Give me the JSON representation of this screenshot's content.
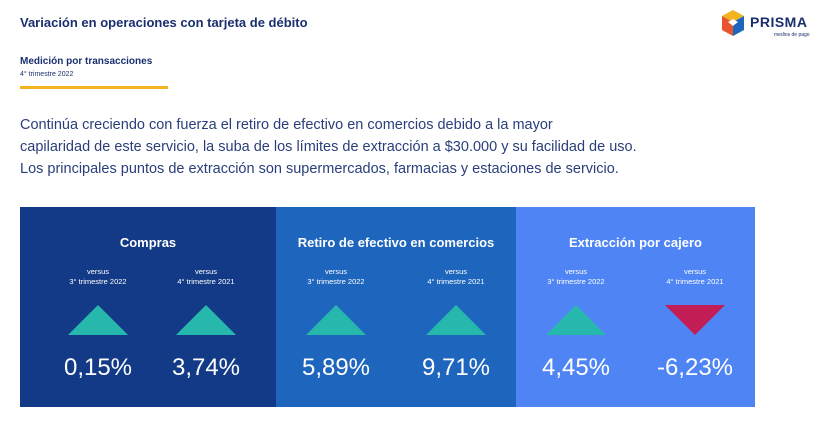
{
  "header": {
    "title": "Variación en operaciones con tarjeta de débito",
    "logo_name": "PRISMA",
    "logo_tagline": "medios de pago"
  },
  "subheader": {
    "heading": "Medición por transacciones",
    "caption": "4° trimestre 2022"
  },
  "paragraph": {
    "lines": [
      "Continúa creciendo con fuerza el retiro de efectivo en comercios debido a la mayor",
      "capilaridad de este servicio, la suba de los límites de extracción a $30.000 y su facilidad de uso.",
      "Los principales puntos de extracción son supermercados, farmacias y estaciones de servicio."
    ]
  },
  "colors": {
    "panel_compras": "#133a86",
    "panel_retiro": "#1d65bd",
    "panel_cajero": "#4e84f3",
    "up_arrow": "#27b8ad",
    "down_arrow": "#c21d54",
    "accent_line": "#f2b41f"
  },
  "panels": [
    {
      "title": "Compras",
      "metrics": [
        {
          "versus": "versus",
          "period": "3° trimestre 2022",
          "direction": "up",
          "value": "0,15%"
        },
        {
          "versus": "versus",
          "period": "4° trimestre 2021",
          "direction": "up",
          "value": "3,74%"
        }
      ]
    },
    {
      "title": "Retiro de efectivo en comercios",
      "metrics": [
        {
          "versus": "versus",
          "period": "3° trimestre 2022",
          "direction": "up",
          "value": "5,89%"
        },
        {
          "versus": "versus",
          "period": "4° trimestre 2021",
          "direction": "up",
          "value": "9,71%"
        }
      ]
    },
    {
      "title": "Extracción por cajero",
      "metrics": [
        {
          "versus": "versus",
          "period": "3° trimestre 2022",
          "direction": "up",
          "value": "4,45%"
        },
        {
          "versus": "versus",
          "period": "4° trimestre 2021",
          "direction": "down",
          "value": "-6,23%"
        }
      ]
    }
  ]
}
